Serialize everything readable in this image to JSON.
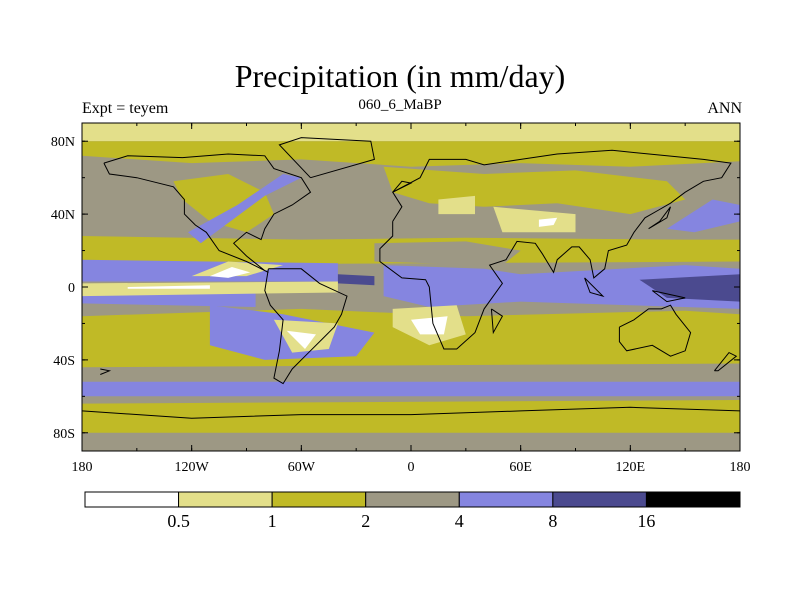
{
  "chart_data": {
    "type": "heatmap",
    "title": "Precipitation (in mm/day)",
    "subtitle_left": "Expt = teyem",
    "subtitle_center": "060_6_MaBP",
    "subtitle_right": "ANN",
    "xlim": [
      -180,
      180
    ],
    "ylim": [
      -90,
      90
    ],
    "x_ticks": [
      {
        "value": -180,
        "label": "180"
      },
      {
        "value": -120,
        "label": "120W"
      },
      {
        "value": -60,
        "label": "60W"
      },
      {
        "value": 0,
        "label": "0"
      },
      {
        "value": 60,
        "label": "60E"
      },
      {
        "value": 120,
        "label": "120E"
      },
      {
        "value": 180,
        "label": "180"
      }
    ],
    "y_ticks": [
      {
        "value": 80,
        "label": "80N"
      },
      {
        "value": 40,
        "label": "40N"
      },
      {
        "value": 0,
        "label": "0"
      },
      {
        "value": -40,
        "label": "40S"
      },
      {
        "value": -80,
        "label": "80S"
      }
    ],
    "colorbar": {
      "levels": [
        0.5,
        1,
        2,
        4,
        8,
        16
      ],
      "level_labels": [
        "0.5",
        "1",
        "2",
        "4",
        "8",
        "16"
      ],
      "colors": [
        "#ffffff",
        "#e3df8a",
        "#c0ba26",
        "#9d9884",
        "#8585e0",
        "#4b4a8f",
        "#000000"
      ]
    },
    "background_class": 3,
    "regions": [
      {
        "class": 1,
        "points": [
          [
            -180,
            90
          ],
          [
            180,
            90
          ],
          [
            180,
            80
          ],
          [
            -180,
            80
          ]
        ]
      },
      {
        "class": 2,
        "points": [
          [
            -180,
            80
          ],
          [
            180,
            80
          ],
          [
            180,
            69
          ],
          [
            120,
            66
          ],
          [
            60,
            68
          ],
          [
            0,
            66
          ],
          [
            -60,
            70
          ],
          [
            -120,
            68
          ],
          [
            -180,
            72
          ]
        ]
      },
      {
        "class": 2,
        "points": [
          [
            -130,
            58
          ],
          [
            -100,
            62
          ],
          [
            -80,
            52
          ],
          [
            -75,
            40
          ],
          [
            -90,
            30
          ],
          [
            -110,
            36
          ],
          [
            -125,
            48
          ]
        ]
      },
      {
        "class": 2,
        "points": [
          [
            -15,
            66
          ],
          [
            40,
            62
          ],
          [
            90,
            64
          ],
          [
            140,
            58
          ],
          [
            150,
            48
          ],
          [
            120,
            40
          ],
          [
            80,
            46
          ],
          [
            40,
            44
          ],
          [
            10,
            46
          ],
          [
            -10,
            52
          ]
        ]
      },
      {
        "class": 2,
        "points": [
          [
            -180,
            28
          ],
          [
            -60,
            26
          ],
          [
            30,
            27
          ],
          [
            150,
            26
          ],
          [
            180,
            26
          ],
          [
            180,
            14
          ],
          [
            -180,
            12
          ]
        ]
      },
      {
        "class": 2,
        "points": [
          [
            -180,
            -16
          ],
          [
            -60,
            -12
          ],
          [
            30,
            -16
          ],
          [
            150,
            -13
          ],
          [
            180,
            -15
          ],
          [
            180,
            -42
          ],
          [
            -180,
            -44
          ]
        ]
      },
      {
        "class": 2,
        "points": [
          [
            -180,
            -64
          ],
          [
            180,
            -62
          ],
          [
            180,
            -80
          ],
          [
            -180,
            -80
          ]
        ]
      },
      {
        "class": 3,
        "points": [
          [
            -20,
            24
          ],
          [
            30,
            25
          ],
          [
            60,
            20
          ],
          [
            50,
            12
          ],
          [
            10,
            13
          ],
          [
            -20,
            14
          ]
        ]
      },
      {
        "class": 3,
        "points": [
          [
            -90,
            -28
          ],
          [
            -50,
            -30
          ],
          [
            -40,
            -20
          ],
          [
            -70,
            -18
          ]
        ]
      },
      {
        "class": 4,
        "points": [
          [
            -180,
            15
          ],
          [
            -40,
            13
          ],
          [
            -40,
            3
          ],
          [
            -180,
            3
          ]
        ]
      },
      {
        "class": 4,
        "points": [
          [
            -180,
            -3
          ],
          [
            -85,
            -3
          ],
          [
            -85,
            -11
          ],
          [
            -180,
            -9
          ]
        ]
      },
      {
        "class": 4,
        "points": [
          [
            -15,
            12
          ],
          [
            40,
            10
          ],
          [
            60,
            7
          ],
          [
            150,
            12
          ],
          [
            180,
            10
          ],
          [
            180,
            -12
          ],
          [
            120,
            -10
          ],
          [
            60,
            -8
          ],
          [
            10,
            -11
          ],
          [
            -15,
            -5
          ]
        ]
      },
      {
        "class": 4,
        "points": [
          [
            -110,
            -10
          ],
          [
            -70,
            -15
          ],
          [
            -20,
            -25
          ],
          [
            -30,
            -38
          ],
          [
            -80,
            -40
          ],
          [
            -110,
            -32
          ]
        ]
      },
      {
        "class": 4,
        "points": [
          [
            -115,
            24
          ],
          [
            -80,
            50
          ],
          [
            -60,
            60
          ],
          [
            -70,
            62
          ],
          [
            -95,
            45
          ],
          [
            -122,
            30
          ]
        ]
      },
      {
        "class": 4,
        "points": [
          [
            140,
            32
          ],
          [
            165,
            48
          ],
          [
            180,
            45
          ],
          [
            180,
            36
          ],
          [
            155,
            30
          ]
        ]
      },
      {
        "class": 4,
        "points": [
          [
            -180,
            -52
          ],
          [
            180,
            -52
          ],
          [
            180,
            -60
          ],
          [
            -180,
            -60
          ]
        ]
      },
      {
        "class": 5,
        "points": [
          [
            125,
            4
          ],
          [
            180,
            7
          ],
          [
            180,
            -8
          ],
          [
            140,
            -6
          ]
        ]
      },
      {
        "class": 5,
        "points": [
          [
            -40,
            7
          ],
          [
            -20,
            6
          ],
          [
            -20,
            1
          ],
          [
            -40,
            2
          ]
        ]
      },
      {
        "class": 1,
        "points": [
          [
            -180,
            -5
          ],
          [
            -40,
            -3
          ],
          [
            -40,
            3
          ],
          [
            -180,
            2
          ]
        ]
      },
      {
        "class": 1,
        "points": [
          [
            -120,
            6
          ],
          [
            -100,
            14
          ],
          [
            -70,
            12
          ],
          [
            -90,
            6
          ]
        ]
      },
      {
        "class": 1,
        "points": [
          [
            -75,
            -18
          ],
          [
            -40,
            -20
          ],
          [
            -45,
            -34
          ],
          [
            -65,
            -36
          ]
        ]
      },
      {
        "class": 1,
        "points": [
          [
            -10,
            -12
          ],
          [
            25,
            -10
          ],
          [
            30,
            -26
          ],
          [
            10,
            -32
          ],
          [
            -10,
            -22
          ]
        ]
      },
      {
        "class": 1,
        "points": [
          [
            15,
            48
          ],
          [
            35,
            50
          ],
          [
            35,
            40
          ],
          [
            15,
            40
          ]
        ]
      },
      {
        "class": 1,
        "points": [
          [
            45,
            44
          ],
          [
            90,
            40
          ],
          [
            90,
            30
          ],
          [
            50,
            30
          ]
        ]
      },
      {
        "class": 0,
        "points": [
          [
            -155,
            0
          ],
          [
            -110,
            1
          ],
          [
            -110,
            -1
          ],
          [
            -155,
            -1
          ]
        ]
      },
      {
        "class": 0,
        "points": [
          [
            -110,
            6
          ],
          [
            -98,
            11
          ],
          [
            -88,
            8
          ],
          [
            -100,
            5
          ]
        ]
      },
      {
        "class": 0,
        "points": [
          [
            -68,
            -24
          ],
          [
            -52,
            -26
          ],
          [
            -58,
            -34
          ]
        ]
      },
      {
        "class": 0,
        "points": [
          [
            0,
            -18
          ],
          [
            20,
            -16
          ],
          [
            18,
            -26
          ],
          [
            5,
            -26
          ]
        ]
      },
      {
        "class": 0,
        "points": [
          [
            70,
            37
          ],
          [
            80,
            38
          ],
          [
            78,
            34
          ],
          [
            70,
            33
          ]
        ]
      }
    ],
    "coastlines": [
      [
        [
          -168,
          68
        ],
        [
          -155,
          72
        ],
        [
          -125,
          71
        ],
        [
          -100,
          73
        ],
        [
          -80,
          72
        ],
        [
          -75,
          65
        ],
        [
          -60,
          60
        ],
        [
          -55,
          52
        ],
        [
          -65,
          45
        ],
        [
          -75,
          40
        ],
        [
          -80,
          32
        ],
        [
          -82,
          26
        ],
        [
          -90,
          30
        ],
        [
          -97,
          24
        ],
        [
          -90,
          17
        ],
        [
          -85,
          13
        ],
        [
          -80,
          9
        ],
        [
          -78,
          8
        ],
        [
          -90,
          14
        ],
        [
          -105,
          20
        ],
        [
          -112,
          30
        ],
        [
          -118,
          34
        ],
        [
          -124,
          40
        ],
        [
          -124,
          48
        ],
        [
          -130,
          55
        ],
        [
          -150,
          60
        ],
        [
          -165,
          62
        ],
        [
          -168,
          68
        ]
      ],
      [
        [
          -78,
          10
        ],
        [
          -60,
          10
        ],
        [
          -50,
          2
        ],
        [
          -35,
          -5
        ],
        [
          -38,
          -15
        ],
        [
          -42,
          -22
        ],
        [
          -48,
          -28
        ],
        [
          -58,
          -38
        ],
        [
          -65,
          -45
        ],
        [
          -70,
          -53
        ],
        [
          -75,
          -50
        ],
        [
          -72,
          -35
        ],
        [
          -70,
          -18
        ],
        [
          -77,
          -10
        ],
        [
          -80,
          -2
        ],
        [
          -78,
          10
        ]
      ],
      [
        [
          -10,
          36
        ],
        [
          -5,
          44
        ],
        [
          -10,
          52
        ],
        [
          5,
          60
        ],
        [
          10,
          70
        ],
        [
          30,
          70
        ],
        [
          40,
          67
        ],
        [
          60,
          70
        ],
        [
          80,
          73
        ],
        [
          110,
          75
        ],
        [
          140,
          72
        ],
        [
          160,
          70
        ],
        [
          175,
          68
        ],
        [
          170,
          60
        ],
        [
          160,
          58
        ],
        [
          150,
          52
        ],
        [
          142,
          46
        ],
        [
          135,
          42
        ],
        [
          128,
          38
        ],
        [
          122,
          30
        ],
        [
          118,
          23
        ],
        [
          108,
          20
        ],
        [
          106,
          10
        ],
        [
          100,
          5
        ],
        [
          98,
          15
        ],
        [
          92,
          22
        ],
        [
          88,
          22
        ],
        [
          80,
          15
        ],
        [
          78,
          8
        ],
        [
          72,
          18
        ],
        [
          68,
          24
        ],
        [
          58,
          25
        ],
        [
          52,
          15
        ],
        [
          43,
          12
        ],
        [
          50,
          2
        ],
        [
          40,
          -12
        ],
        [
          35,
          -25
        ],
        [
          25,
          -34
        ],
        [
          18,
          -34
        ],
        [
          12,
          -20
        ],
        [
          10,
          0
        ],
        [
          8,
          4
        ],
        [
          -5,
          5
        ],
        [
          -17,
          14
        ],
        [
          -17,
          21
        ],
        [
          -10,
          28
        ],
        [
          -10,
          36
        ]
      ],
      [
        [
          114,
          -22
        ],
        [
          122,
          -18
        ],
        [
          130,
          -12
        ],
        [
          137,
          -12
        ],
        [
          142,
          -10
        ],
        [
          145,
          -15
        ],
        [
          153,
          -25
        ],
        [
          150,
          -35
        ],
        [
          142,
          -38
        ],
        [
          132,
          -32
        ],
        [
          118,
          -35
        ],
        [
          114,
          -30
        ],
        [
          114,
          -22
        ]
      ],
      [
        [
          -55,
          60
        ],
        [
          -20,
          70
        ],
        [
          -22,
          80
        ],
        [
          -60,
          82
        ],
        [
          -72,
          78
        ],
        [
          -55,
          60
        ]
      ],
      [
        [
          -10,
          52
        ],
        [
          0,
          57
        ],
        [
          -5,
          58
        ],
        [
          -10,
          52
        ]
      ],
      [
        [
          130,
          32
        ],
        [
          140,
          38
        ],
        [
          142,
          44
        ],
        [
          136,
          36
        ],
        [
          130,
          32
        ]
      ],
      [
        [
          -180,
          -68
        ],
        [
          -120,
          -72
        ],
        [
          -60,
          -70
        ],
        [
          0,
          -70
        ],
        [
          60,
          -68
        ],
        [
          120,
          -66
        ],
        [
          180,
          -68
        ]
      ],
      [
        [
          95,
          5
        ],
        [
          105,
          -5
        ],
        [
          98,
          -3
        ],
        [
          95,
          5
        ]
      ],
      [
        [
          132,
          -2
        ],
        [
          150,
          -6
        ],
        [
          140,
          -8
        ],
        [
          132,
          -2
        ]
      ],
      [
        [
          44,
          -12
        ],
        [
          50,
          -16
        ],
        [
          45,
          -25
        ],
        [
          44,
          -12
        ]
      ],
      [
        [
          166,
          -46
        ],
        [
          174,
          -36
        ],
        [
          178,
          -38
        ],
        [
          168,
          -46
        ],
        [
          166,
          -46
        ]
      ],
      [
        [
          -170,
          -45
        ],
        [
          -165,
          -46
        ],
        [
          -170,
          -48
        ]
      ]
    ]
  }
}
